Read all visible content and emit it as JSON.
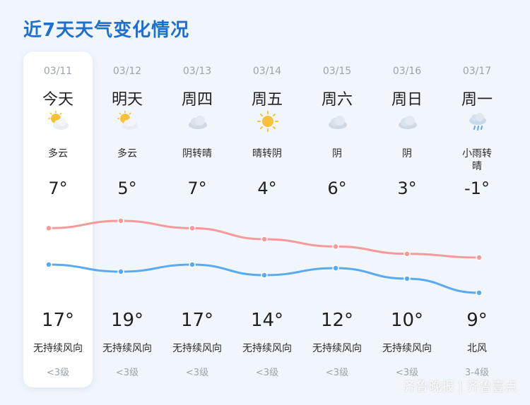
{
  "title": "近7天天气变化情况",
  "days": [
    {
      "date": "03/11",
      "day": "今天",
      "icon": "partly-cloudy-icon",
      "cond": "多云",
      "low": "7°",
      "high": "17°",
      "wind": "无持续风向",
      "level": "<3级",
      "low_value": 7,
      "high_value": 17
    },
    {
      "date": "03/12",
      "day": "明天",
      "icon": "partly-cloudy-icon",
      "cond": "多云",
      "low": "5°",
      "high": "19°",
      "wind": "无持续风向",
      "level": "<3级",
      "low_value": 5,
      "high_value": 19
    },
    {
      "date": "03/13",
      "day": "周四",
      "icon": "cloud-icon",
      "cond": "阴转晴",
      "low": "7°",
      "high": "17°",
      "wind": "无持续风向",
      "level": "<3级",
      "low_value": 7,
      "high_value": 17
    },
    {
      "date": "03/14",
      "day": "周五",
      "icon": "sun-icon",
      "cond": "晴转阴",
      "low": "4°",
      "high": "14°",
      "wind": "无持续风向",
      "level": "<3级",
      "low_value": 4,
      "high_value": 14
    },
    {
      "date": "03/15",
      "day": "周六",
      "icon": "cloud-icon",
      "cond": "阴",
      "low": "6°",
      "high": "12°",
      "wind": "无持续风向",
      "level": "<3级",
      "low_value": 6,
      "high_value": 12
    },
    {
      "date": "03/16",
      "day": "周日",
      "icon": "cloud-icon",
      "cond": "阴",
      "low": "3°",
      "high": "10°",
      "wind": "无持续风向",
      "level": "<3级",
      "low_value": 3,
      "high_value": 10
    },
    {
      "date": "03/17",
      "day": "周一",
      "icon": "light-rain-icon",
      "cond": "小雨转\n晴",
      "low": "-1°",
      "high": "9°",
      "wind": "北风",
      "level": "3-4级",
      "low_value": -1,
      "high_value": 9
    }
  ],
  "colors": {
    "high_line": "#f59a9a",
    "low_line": "#5aaaf2",
    "accent": "#1d6fd0"
  },
  "watermark": "齐鲁晚报 | 齐鲁壹点"
}
